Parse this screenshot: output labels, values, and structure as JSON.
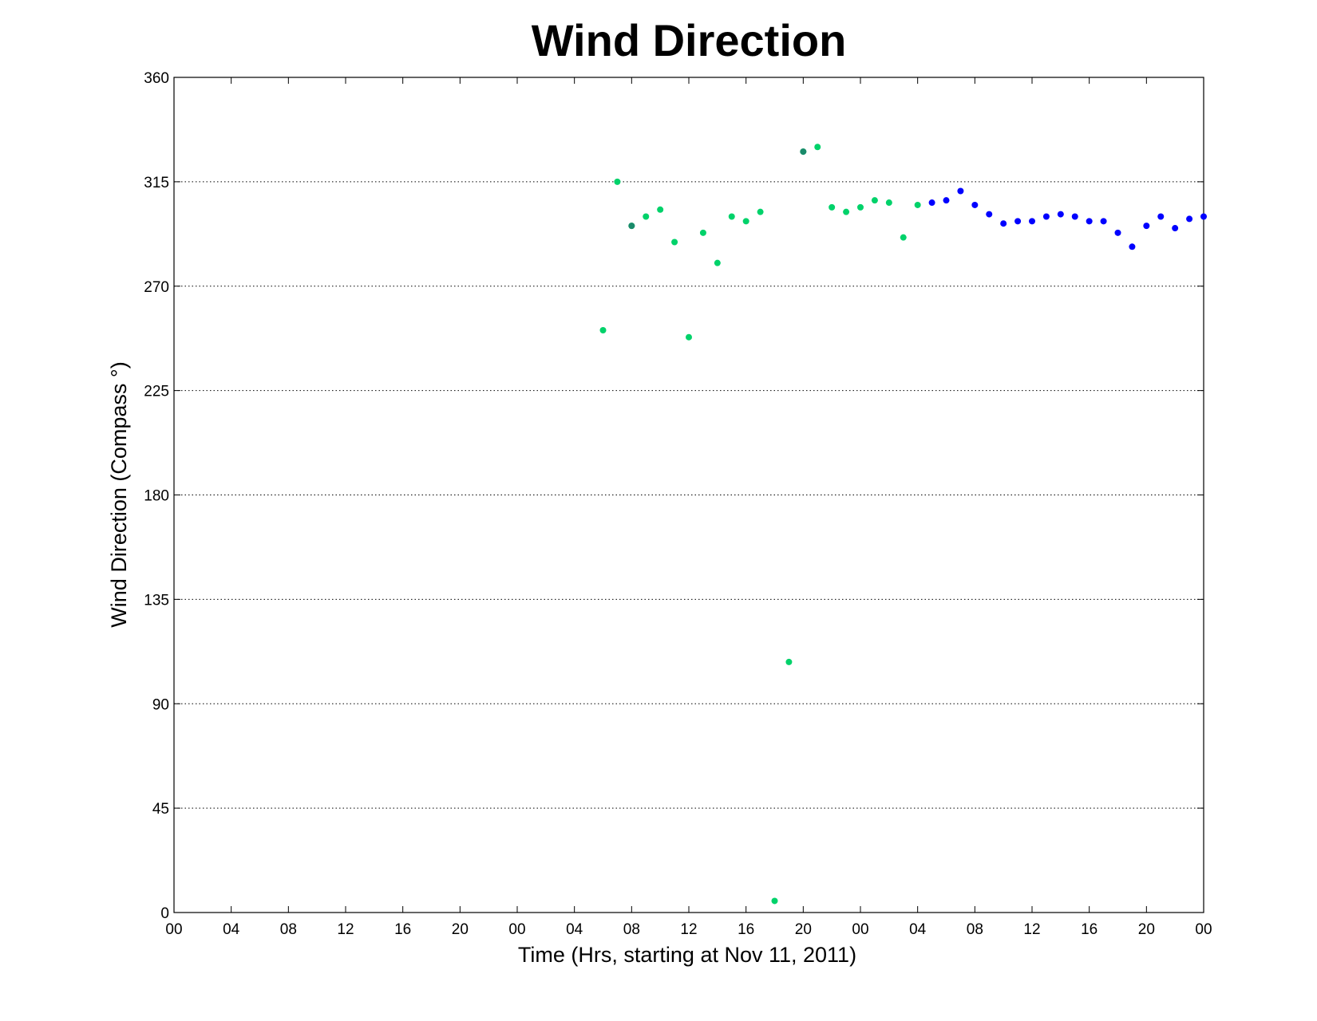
{
  "chart_data": {
    "type": "scatter",
    "title": "Wind Direction",
    "xlabel": "Time (Hrs, starting at Nov 11, 2011)",
    "ylabel": "Wind Direction (Compass  °)",
    "xlim": [
      0,
      72
    ],
    "ylim": [
      0,
      360
    ],
    "x_ticks": [
      0,
      4,
      8,
      12,
      16,
      20,
      24,
      28,
      32,
      36,
      40,
      44,
      48,
      52,
      56,
      60,
      64,
      68,
      72
    ],
    "x_tick_labels": [
      "00",
      "04",
      "08",
      "12",
      "16",
      "20",
      "00",
      "04",
      "08",
      "12",
      "16",
      "20",
      "00",
      "04",
      "08",
      "12",
      "16",
      "20",
      "00"
    ],
    "y_ticks": [
      0,
      45,
      90,
      135,
      180,
      225,
      270,
      315,
      360
    ],
    "y_tick_labels": [
      "0",
      "45",
      "90",
      "135",
      "180",
      "225",
      "270",
      "315",
      "360"
    ],
    "grid": "horizontal dotted",
    "series": [
      {
        "color": "#00d26a",
        "x": [
          30,
          31,
          32,
          33,
          34,
          35,
          36,
          37,
          38,
          39,
          40,
          41,
          42,
          43,
          44,
          45,
          46,
          47,
          48,
          49,
          50,
          51,
          52
        ],
        "y": [
          251,
          315,
          296,
          300,
          303,
          289,
          248,
          293,
          280,
          300,
          298,
          302,
          5,
          108,
          328,
          330,
          304,
          302,
          304,
          307,
          306,
          291,
          305
        ]
      },
      {
        "color": "#0000ff",
        "x": [
          53,
          54,
          55,
          56,
          57,
          58,
          59,
          60,
          61,
          62,
          63,
          64,
          65,
          66,
          67,
          68,
          69,
          70,
          71,
          72
        ],
        "y": [
          306,
          307,
          311,
          305,
          301,
          297,
          298,
          298,
          300,
          301,
          300,
          298,
          298,
          293,
          287,
          296,
          300,
          295,
          299,
          300
        ]
      }
    ],
    "overlap_points": [
      {
        "x": 32,
        "y": 296,
        "color": "#1a8a6a"
      },
      {
        "x": 44,
        "y": 328,
        "color": "#1a8a6a"
      }
    ]
  }
}
